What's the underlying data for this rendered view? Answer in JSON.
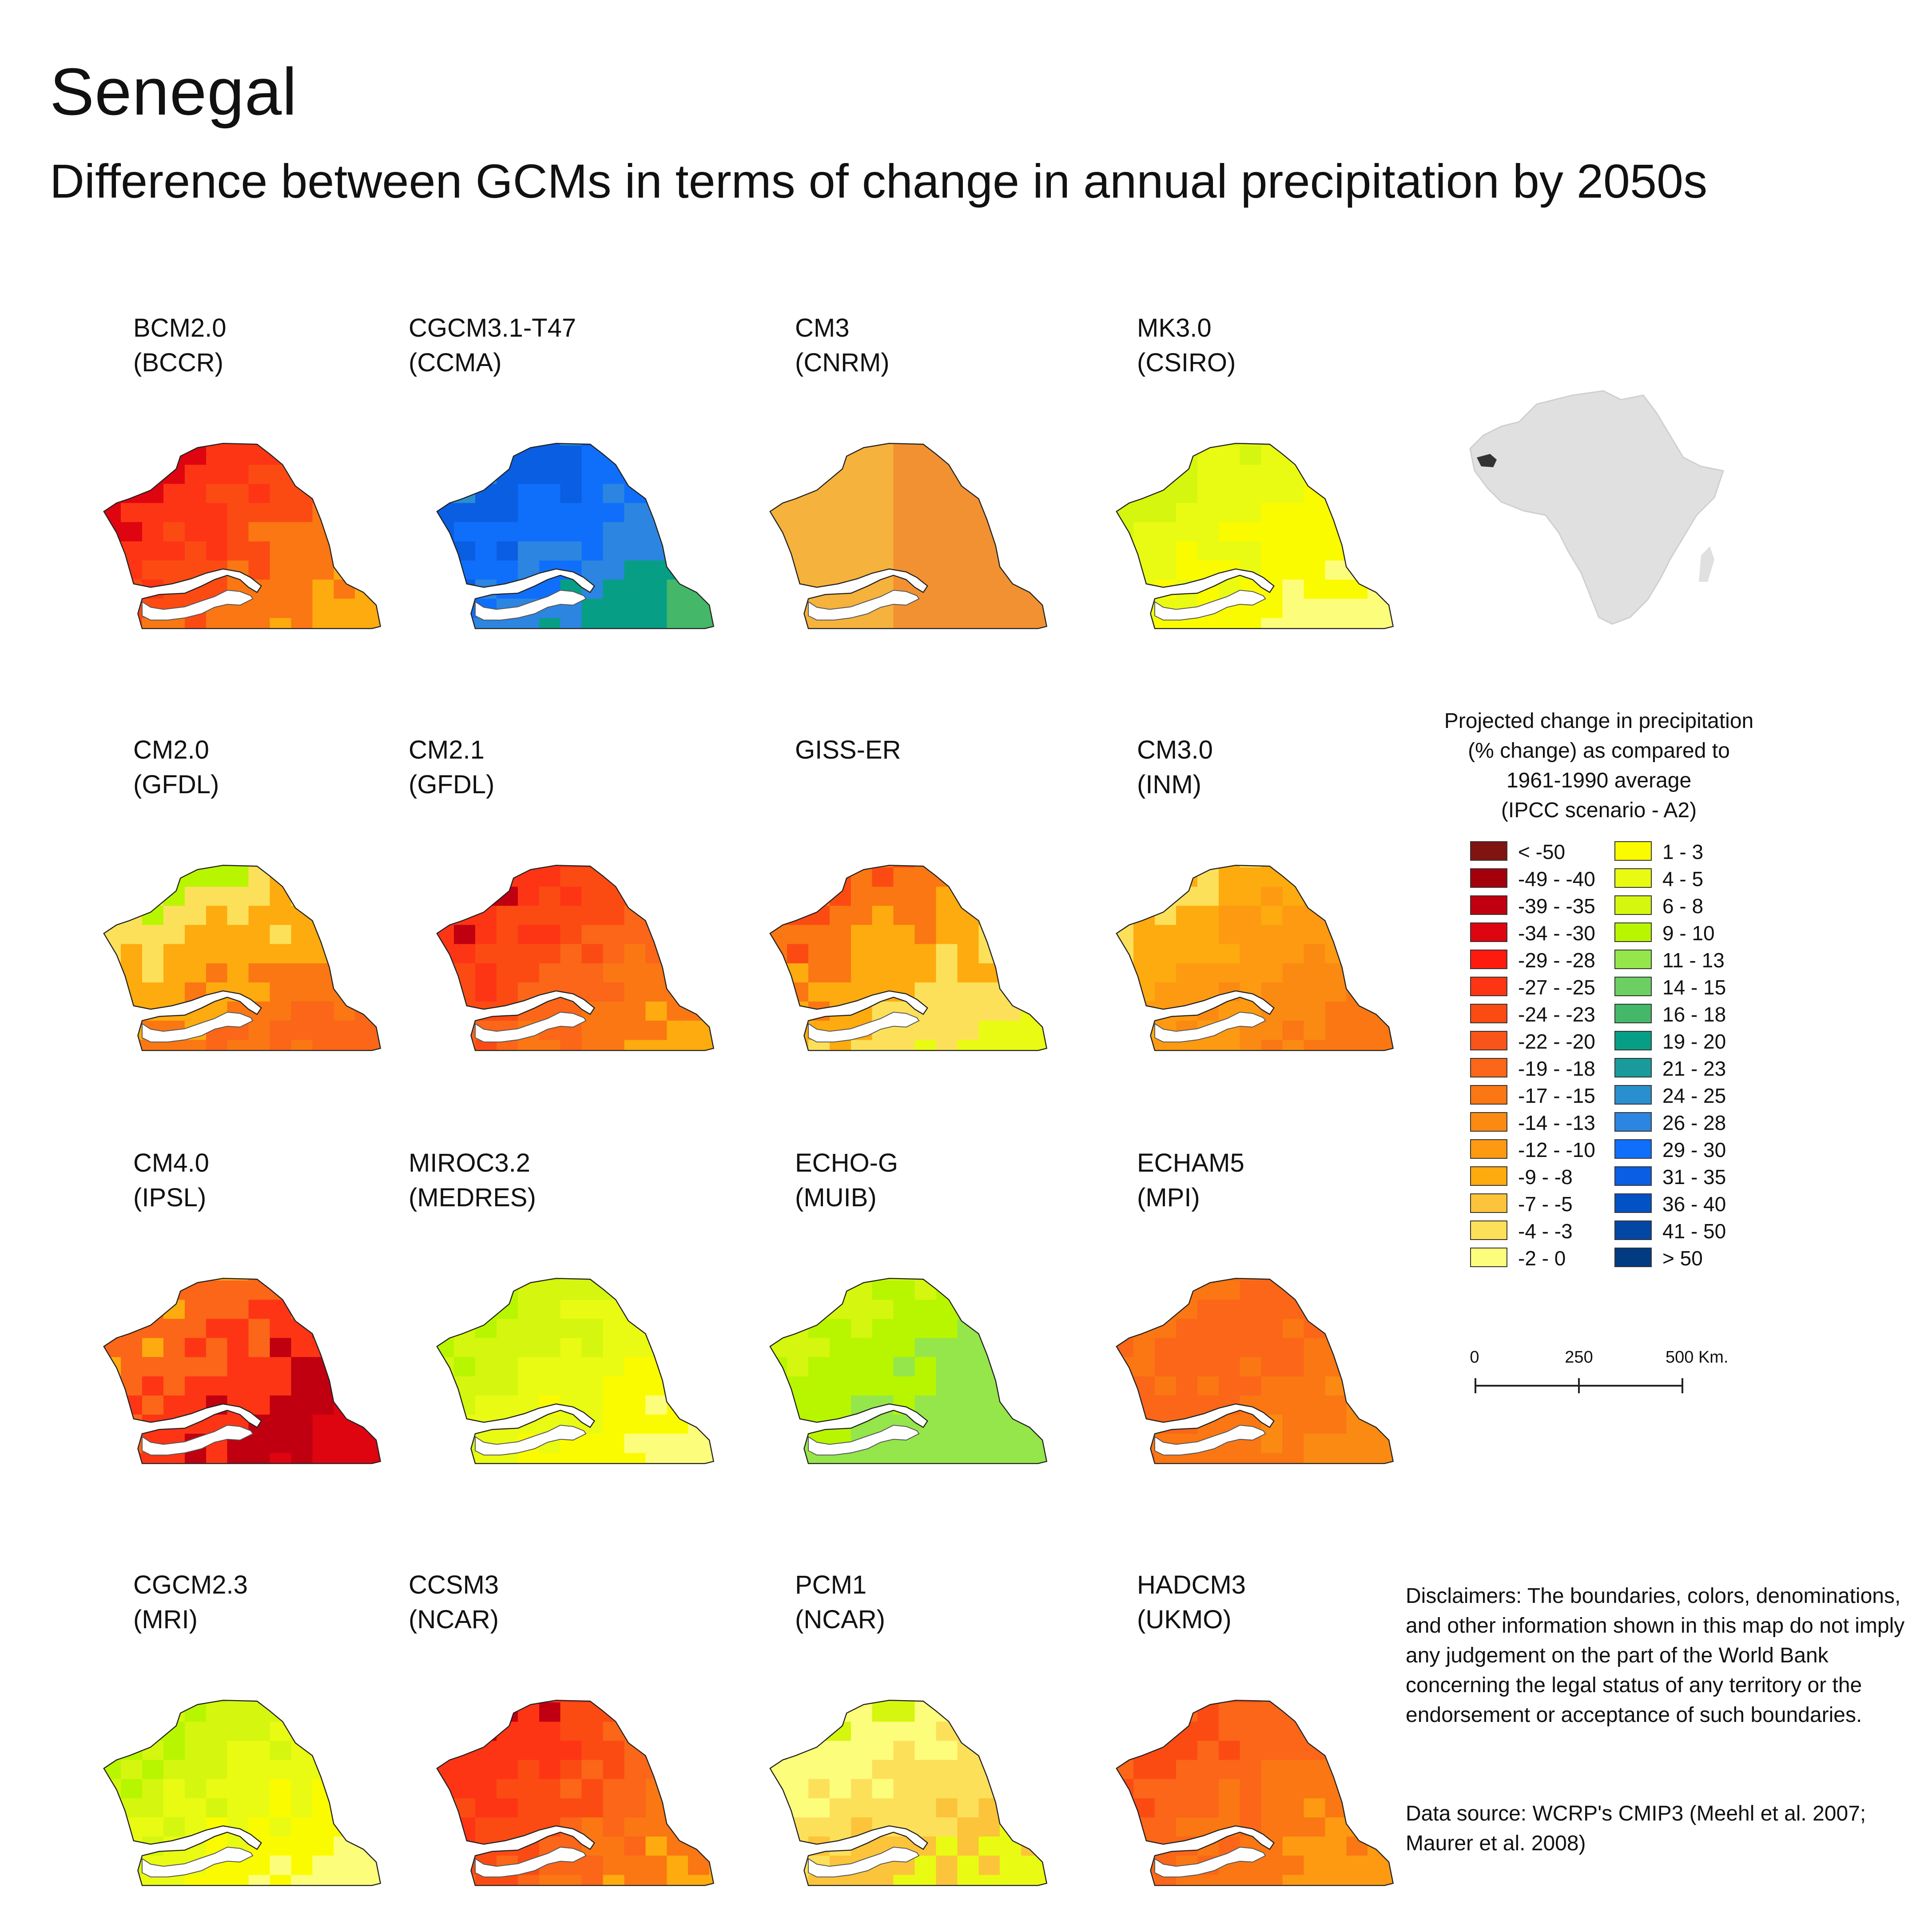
{
  "title": "Senegal",
  "subtitle": "Difference between GCMs in terms of change in annual precipitation by 2050s",
  "palette": [
    {
      "label": "< -50",
      "color": "#7f1410"
    },
    {
      "label": "-49 - -40",
      "color": "#a3000c"
    },
    {
      "label": "-39 - -35",
      "color": "#c00010"
    },
    {
      "label": "-34 - -30",
      "color": "#de0510"
    },
    {
      "label": "-29 - -28",
      "color": "#ff1a10"
    },
    {
      "label": "-27 - -25",
      "color": "#fd3515"
    },
    {
      "label": "-24 - -23",
      "color": "#fb4b13"
    },
    {
      "label": "-22 - -20",
      "color": "#f9551a"
    },
    {
      "label": "-19 - -18",
      "color": "#fb6618"
    },
    {
      "label": "-17 - -15",
      "color": "#fa7713"
    },
    {
      "label": "-14 - -13",
      "color": "#fb8a13"
    },
    {
      "label": "-12 - -10",
      "color": "#fd9a12"
    },
    {
      "label": "-9 - -8",
      "color": "#fdab0e"
    },
    {
      "label": "-7 - -5",
      "color": "#fcc43a"
    },
    {
      "label": "-4 - -3",
      "color": "#fde05a"
    },
    {
      "label": "-2 - 0",
      "color": "#fdfd7c"
    },
    {
      "label": "1 - 3",
      "color": "#fbfb00"
    },
    {
      "label": "4 - 5",
      "color": "#e9fb12"
    },
    {
      "label": "6 - 8",
      "color": "#d5f60f"
    },
    {
      "label": "9 - 10",
      "color": "#b8f600"
    },
    {
      "label": "11 - 13",
      "color": "#94e64a"
    },
    {
      "label": "14 - 15",
      "color": "#6ccf61"
    },
    {
      "label": "16 - 18",
      "color": "#44b868"
    },
    {
      "label": "19 - 20",
      "color": "#079e86"
    },
    {
      "label": "21 - 23",
      "color": "#1a9b9b"
    },
    {
      "label": "24 - 25",
      "color": "#2a8fce"
    },
    {
      "label": "26 - 28",
      "color": "#2c85e0"
    },
    {
      "label": "29 - 30",
      "color": "#0f6ffb"
    },
    {
      "label": "31 - 35",
      "color": "#0a5ee2"
    },
    {
      "label": "36 - 40",
      "color": "#0252c5"
    },
    {
      "label": "41 - 50",
      "color": "#0347a4"
    },
    {
      "label": "> 50",
      "color": "#033b83"
    }
  ],
  "maps": [
    {
      "model": "BCM2.0",
      "institute": "(BCCR)",
      "pattern": "grad",
      "colors": [
        "#de0510",
        "#fd3515",
        "#fb4b13",
        "#fa7713",
        "#fdab0e"
      ]
    },
    {
      "model": "CGCM3.1-T47",
      "institute": "(CCMA)",
      "pattern": "grad",
      "colors": [
        "#2a8fce",
        "#0a5ee2",
        "#0f6ffb",
        "#2c85e0",
        "#079e86",
        "#44b868"
      ]
    },
    {
      "model": "CM3",
      "institute": "(CNRM)",
      "pattern": "split",
      "colors": [
        "#f5b23c",
        "#f29131"
      ]
    },
    {
      "model": "MK3.0",
      "institute": "(CSIRO)",
      "pattern": "grad",
      "colors": [
        "#d5f60f",
        "#e9fb12",
        "#fbfb00",
        "#fdfd7c"
      ]
    },
    {
      "model": "CM2.0",
      "institute": "(GFDL)",
      "pattern": "mix",
      "colors": [
        "#b8f600",
        "#fde05a",
        "#fdab0e",
        "#fa7713",
        "#fb6618"
      ]
    },
    {
      "model": "CM2.1",
      "institute": "(GFDL)",
      "pattern": "grad",
      "colors": [
        "#c00010",
        "#fd3515",
        "#fb4b13",
        "#fb6618",
        "#fa7713",
        "#fdab0e"
      ]
    },
    {
      "model": "GISS-ER",
      "institute": "",
      "pattern": "grad",
      "colors": [
        "#fb4b13",
        "#fa7713",
        "#fdab0e",
        "#fde05a",
        "#e9fb12"
      ]
    },
    {
      "model": "CM3.0",
      "institute": "(INM)",
      "pattern": "grad",
      "colors": [
        "#fde05a",
        "#fdab0e",
        "#fd9a12",
        "#fb8a13",
        "#fa7713"
      ]
    },
    {
      "model": "CM4.0",
      "institute": "(IPSL)",
      "pattern": "grad",
      "colors": [
        "#fdab0e",
        "#fb6618",
        "#fd3515",
        "#c00010",
        "#de0510"
      ]
    },
    {
      "model": "MIROC3.2",
      "institute": "(MEDRES)",
      "pattern": "grad",
      "colors": [
        "#b8f600",
        "#d5f60f",
        "#e9fb12",
        "#fbfb00",
        "#fdfd7c"
      ]
    },
    {
      "model": "ECHO-G",
      "institute": "(MUIB)",
      "pattern": "grad",
      "colors": [
        "#d5f60f",
        "#b8f600",
        "#94e64a",
        "#94e64a"
      ]
    },
    {
      "model": "ECHAM5",
      "institute": "(MPI)",
      "pattern": "grad",
      "colors": [
        "#fa7713",
        "#fb6618",
        "#fa7713",
        "#fb8a13"
      ]
    },
    {
      "model": "CGCM2.3",
      "institute": "(MRI)",
      "pattern": "grad",
      "colors": [
        "#b8f600",
        "#d5f60f",
        "#e9fb12",
        "#fbfb00",
        "#fdfd7c"
      ]
    },
    {
      "model": "CCSM3",
      "institute": "(NCAR)",
      "pattern": "grad",
      "colors": [
        "#c00010",
        "#fd3515",
        "#fb4b13",
        "#fb6618",
        "#fa7713",
        "#fdab0e"
      ]
    },
    {
      "model": "PCM1",
      "institute": "(NCAR)",
      "pattern": "mix",
      "colors": [
        "#d5f60f",
        "#fdfd7c",
        "#fde05a",
        "#fcc43a",
        "#e9fb12"
      ]
    },
    {
      "model": "HADCM3",
      "institute": "(UKMO)",
      "pattern": "grad",
      "colors": [
        "#fb4b13",
        "#fb6618",
        "#fa7713",
        "#fd9a12"
      ]
    }
  ],
  "legend": {
    "title_lines": [
      "Projected change in precipitation",
      "(% change) as compared to",
      "1961-1990 average",
      "(IPCC scenario - A2)"
    ]
  },
  "scale": {
    "labels": [
      "0",
      "250",
      "500 Km."
    ]
  },
  "disclaimer": "Disclaimers: The boundaries, colors, denominations, and other information shown in this map do not imply any judgement on the part of the World Bank concerning the legal status of any territory or the endorsement or acceptance of such boundaries.",
  "data_source": "Data source: WCRP's CMIP3 (Meehl et al. 2007; Maurer et al. 2008)"
}
